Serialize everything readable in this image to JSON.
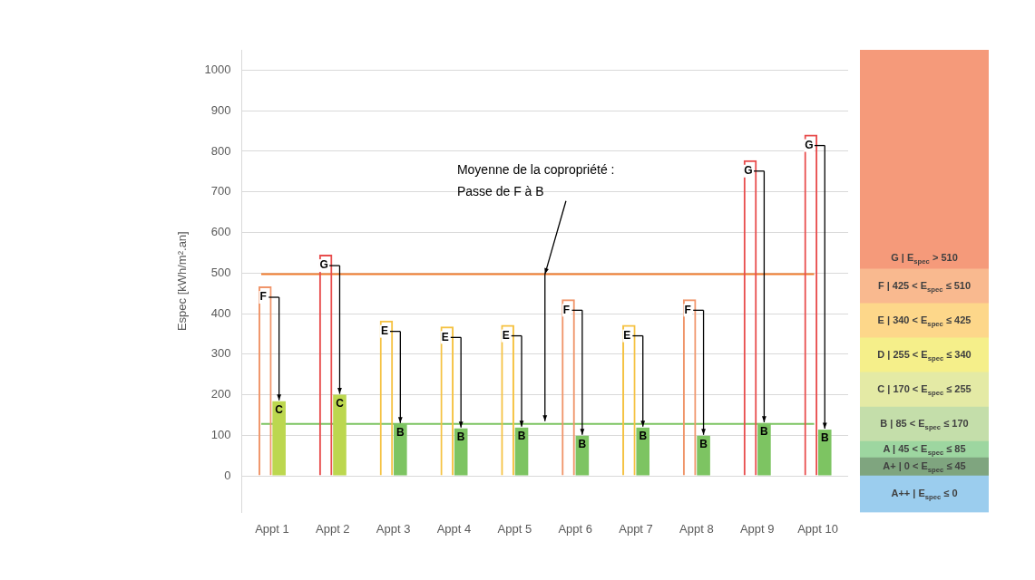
{
  "chart_data": [
    {
      "type": "bar",
      "ylabel": "Espec [kWh/m².an]",
      "categories": [
        "Appt 1",
        "Appt 2",
        "Appt 3",
        "Appt 4",
        "Appt 5",
        "Appt 6",
        "Appt 7",
        "Appt 8",
        "Appt 9",
        "Appt 10"
      ],
      "series": [
        {
          "values": [
            467,
            545,
            383,
            368,
            372,
            435,
            372,
            435,
            778,
            841
          ],
          "colors": [
            "#f0956a",
            "#e84c4c",
            "#f5c242",
            "#f5c242",
            "#f5c242",
            "#f0956a",
            "#f5c242",
            "#f0956a",
            "#e84c4c",
            "#e84c4c"
          ],
          "value_labels": [
            "F",
            "G",
            "E",
            "E",
            "E",
            "F",
            "E",
            "F",
            "G",
            "G"
          ]
        },
        {
          "values": [
            184,
            200,
            128,
            117,
            119,
            99,
            119,
            99,
            130,
            114
          ],
          "colors": [
            "#bcd74f",
            "#bcd74f",
            "#7dc462",
            "#7dc462",
            "#7dc462",
            "#7dc462",
            "#7dc462",
            "#7dc462",
            "#7dc462",
            "#7dc462"
          ],
          "value_labels": [
            "C",
            "C",
            "B",
            "B",
            "B",
            "B",
            "B",
            "B",
            "B",
            "B"
          ]
        }
      ],
      "ylim": [
        -90,
        1050
      ],
      "yticks": [
        0,
        100,
        200,
        300,
        400,
        500,
        600,
        700,
        800,
        900,
        1000
      ],
      "grid": "y",
      "legend": false,
      "ref_lines": [
        {
          "axis": "y",
          "value": 497,
          "color": "#f07b2c"
        },
        {
          "axis": "y",
          "value": 128,
          "color": "#7dc462"
        }
      ],
      "annotations": [
        "Moyenne de la copropriété :\nPasse de F à B"
      ]
    },
    {
      "type": "bar",
      "stacked": true,
      "categories": [
        null
      ],
      "ylim": [
        -90,
        1050
      ],
      "tick_labels": false,
      "legend": false,
      "series": [
        {
          "name": "A++ | E$_{spec}$ ≤ 0",
          "color": "#9bcdee",
          "values": [
            -90
          ]
        },
        {
          "name": "A+ | 0 < E$_{spec}$ ≤ 45",
          "color": "#7fa57f",
          "values": [
            45
          ]
        },
        {
          "name": "A | 45 < E$_{spec}$ ≤ 85",
          "color": "#9dd6a0",
          "values": [
            40
          ]
        },
        {
          "name": "B | 85 < E$_{spec}$ ≤ 170",
          "color": "#c4deaa",
          "values": [
            85
          ]
        },
        {
          "name": "C | 170 < E$_{spec}$ ≤ 255",
          "color": "#e4eaa5",
          "values": [
            85
          ]
        },
        {
          "name": "D | 255 < E$_{spec}$ ≤ 340",
          "color": "#f5ef8a",
          "values": [
            85
          ]
        },
        {
          "name": "E | 340 < E$_{spec}$ ≤ 425",
          "color": "#fdd78a",
          "values": [
            85
          ]
        },
        {
          "name": "F | 425 < E$_{spec}$ ≤ 510",
          "color": "#f9b98f",
          "values": [
            85
          ]
        },
        {
          "name": "G | E$_{spec}$ > 510",
          "color": "#f59a7a",
          "values": [
            540
          ]
        }
      ]
    }
  ]
}
